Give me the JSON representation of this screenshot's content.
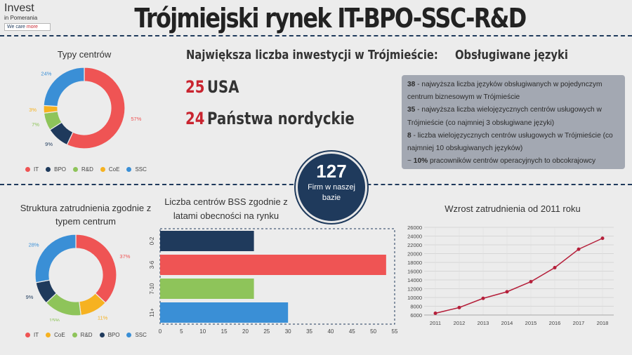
{
  "title": "Trójmiejski rynek IT-BPO-SSC-R&D",
  "logo": {
    "brand": "Invest",
    "sub": "in Pomerania",
    "tag_a": "We care ",
    "tag_b": "more"
  },
  "colors": {
    "IT": "#ef5454",
    "BPO": "#1f3a5c",
    "R&D": "#8ec45a",
    "CoE": "#f6b221",
    "SSC": "#3a8fd6",
    "navy": "#1f3a5c",
    "red": "#c9242f",
    "line": "#b51f3a"
  },
  "investments": {
    "heading": "Największa liczba inwestycji w Trójmieście:",
    "items": [
      {
        "num": "25",
        "label": "USA"
      },
      {
        "num": "24",
        "label": "Państwa nordyckie"
      }
    ]
  },
  "languages": {
    "heading": "Obsługiwane języki",
    "lines": [
      {
        "bold": "38",
        "text": " - najwyższa liczba języków obsługiwanych w pojedynczym centrum biznesowym w Trójmieście"
      },
      {
        "bold": "35",
        "text": " - najwyższa liczba wielojęzycznych centrów usługowych w Trójmieście (co najmniej 3 obsługiwane języki)"
      },
      {
        "bold": "8",
        "text": " - liczba wielojęzycznych centrów usługowych w Trójmieście (co najmniej 10 obsługiwanych języków)"
      },
      {
        "bold": "10%",
        "text": " pracowników centrów operacyjnych to obcokrajowcy",
        "prefix": "~ "
      }
    ]
  },
  "circle": {
    "number": "127",
    "text": "Firm w naszej bazie"
  },
  "chart_data": [
    {
      "type": "pie",
      "title": "Typy centrów",
      "slices": [
        {
          "label": "IT",
          "value": 57,
          "text": "57%"
        },
        {
          "label": "BPO",
          "value": 9,
          "text": "9%"
        },
        {
          "label": "R&D",
          "value": 7,
          "text": "7%"
        },
        {
          "label": "CoE",
          "value": 3,
          "text": "3%"
        },
        {
          "label": "SSC",
          "value": 24,
          "text": "24%"
        }
      ],
      "legend": [
        "IT",
        "BPO",
        "R&D",
        "CoE",
        "SSC"
      ],
      "legend_position": "bottom"
    },
    {
      "type": "pie",
      "title": "Struktura zatrudnienia zgodnie z typem centrum",
      "slices": [
        {
          "label": "IT",
          "value": 37,
          "text": "37%"
        },
        {
          "label": "CoE",
          "value": 11,
          "text": "11%"
        },
        {
          "label": "R&D",
          "value": 15,
          "text": "15%"
        },
        {
          "label": "BPO",
          "value": 9,
          "text": "9%"
        },
        {
          "label": "SSC",
          "value": 28,
          "text": "28%"
        }
      ],
      "legend": [
        "IT",
        "CoE",
        "R&D",
        "BPO",
        "SSC"
      ],
      "legend_position": "bottom"
    },
    {
      "type": "bar",
      "orientation": "horizontal",
      "title": "Liczba centrów BSS zgodnie z latami obecności na rynku",
      "categories": [
        "0-2",
        "3-6",
        "7-10",
        "11+"
      ],
      "values": [
        22,
        53,
        22,
        30
      ],
      "colors": [
        "#1f3a5c",
        "#ef5454",
        "#8ec45a",
        "#3a8fd6"
      ],
      "xlim": [
        0,
        55
      ],
      "xticks": [
        0,
        5,
        10,
        15,
        20,
        25,
        30,
        35,
        40,
        45,
        50,
        55
      ]
    },
    {
      "type": "line",
      "title": "Wzrost zatrudnienia od 2011 roku",
      "x": [
        "2011",
        "2012",
        "2013",
        "2014",
        "2015",
        "2016",
        "2017",
        "2018"
      ],
      "y": [
        6400,
        7700,
        9800,
        11300,
        13600,
        16800,
        21000,
        23500
      ],
      "ylim": [
        6000,
        26000
      ],
      "yticks": [
        6000,
        8000,
        10000,
        12000,
        14000,
        16000,
        18000,
        20000,
        22000,
        24000,
        26000
      ],
      "grid": true
    }
  ]
}
